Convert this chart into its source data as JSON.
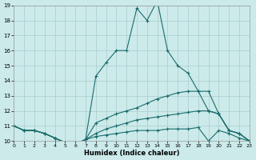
{
  "xlabel": "Humidex (Indice chaleur)",
  "bg_color": "#cceaea",
  "grid_color": "#aacccc",
  "line_color": "#1a6b6b",
  "xlim": [
    0,
    23
  ],
  "ylim": [
    10,
    19
  ],
  "yticks": [
    10,
    11,
    12,
    13,
    14,
    15,
    16,
    17,
    18,
    19
  ],
  "xticks": [
    0,
    1,
    2,
    3,
    4,
    5,
    6,
    7,
    8,
    9,
    10,
    11,
    12,
    13,
    14,
    15,
    16,
    17,
    18,
    19,
    20,
    21,
    22,
    23
  ],
  "series": [
    {
      "x": [
        0,
        1,
        2,
        3,
        4,
        5,
        6,
        7,
        8,
        9,
        10,
        11,
        12,
        13,
        14,
        15,
        16,
        17,
        18,
        19,
        20,
        21,
        22,
        23
      ],
      "y": [
        11,
        10.7,
        10.7,
        10.5,
        10.2,
        9.9,
        9.8,
        10.1,
        10.3,
        10.4,
        10.5,
        10.6,
        10.7,
        10.7,
        10.7,
        10.8,
        10.8,
        10.8,
        10.9,
        10.0,
        10.7,
        10.5,
        10.2,
        10.0
      ]
    },
    {
      "x": [
        0,
        1,
        2,
        3,
        4,
        5,
        6,
        7,
        8,
        9,
        10,
        11,
        12,
        13,
        14,
        15,
        16,
        17,
        18,
        19,
        20,
        21,
        22,
        23
      ],
      "y": [
        11,
        10.7,
        10.7,
        10.5,
        10.2,
        9.9,
        9.8,
        10.1,
        10.5,
        10.8,
        11.0,
        11.2,
        11.4,
        11.5,
        11.6,
        11.7,
        11.8,
        11.9,
        12.0,
        12.0,
        11.8,
        10.7,
        10.5,
        10.0
      ]
    },
    {
      "x": [
        0,
        1,
        2,
        3,
        4,
        5,
        6,
        7,
        8,
        9,
        10,
        11,
        12,
        13,
        14,
        15,
        16,
        17,
        18,
        19,
        20,
        21,
        22,
        23
      ],
      "y": [
        11,
        10.7,
        10.7,
        10.5,
        10.2,
        9.9,
        9.8,
        10.1,
        11.2,
        11.5,
        11.8,
        12.0,
        12.2,
        12.5,
        12.8,
        13.0,
        13.2,
        13.3,
        13.3,
        13.3,
        11.8,
        10.7,
        10.5,
        10.0
      ]
    },
    {
      "x": [
        0,
        1,
        2,
        3,
        4,
        5,
        6,
        7,
        8,
        9,
        10,
        11,
        12,
        13,
        14,
        15,
        16,
        17,
        18,
        19,
        20,
        21,
        22,
        23
      ],
      "y": [
        11,
        10.7,
        10.7,
        10.5,
        10.2,
        9.9,
        9.8,
        10.1,
        14.3,
        15.2,
        16.0,
        16.0,
        18.8,
        18.0,
        19.3,
        16.0,
        15.0,
        14.5,
        13.3,
        12.0,
        11.8,
        10.7,
        10.5,
        10.0
      ]
    }
  ]
}
